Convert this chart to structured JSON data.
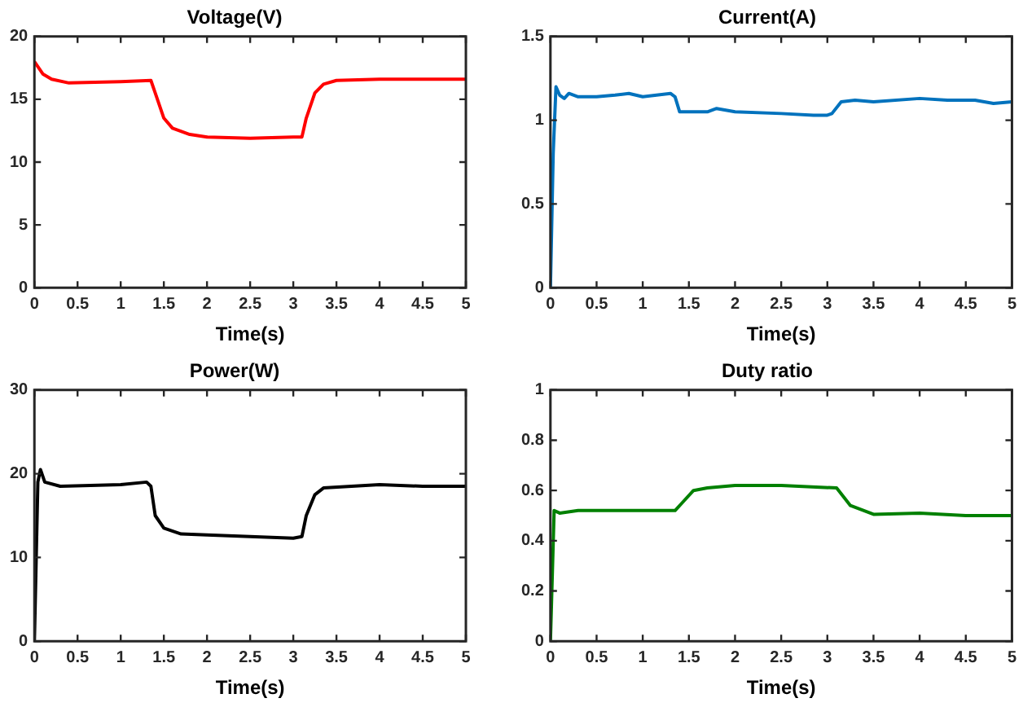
{
  "chart_data": [
    {
      "type": "line",
      "title": "Voltage(V)",
      "xlabel": "Time(s)",
      "xlim": [
        0,
        5
      ],
      "xticks": [
        0,
        0.5,
        1,
        1.5,
        2,
        2.5,
        3,
        3.5,
        4,
        4.5,
        5
      ],
      "ylim": [
        0,
        20
      ],
      "yticks": [
        0,
        5,
        10,
        15,
        20
      ],
      "grid": false,
      "legend": false,
      "marker": "none",
      "line_style": "solid",
      "series": [
        {
          "color": "#ff0000",
          "x": [
            0,
            0.1,
            0.2,
            0.4,
            1,
            1.35,
            1.4,
            1.5,
            1.6,
            1.8,
            2,
            2.5,
            3,
            3.1,
            3.15,
            3.25,
            3.35,
            3.5,
            4,
            5
          ],
          "values": [
            18,
            17,
            16.6,
            16.3,
            16.4,
            16.5,
            15.5,
            13.5,
            12.7,
            12.2,
            12,
            11.9,
            12,
            12,
            13.5,
            15.5,
            16.2,
            16.5,
            16.6,
            16.6
          ]
        }
      ]
    },
    {
      "type": "line",
      "title": "Current(A)",
      "xlabel": "Time(s)",
      "xlim": [
        0,
        5
      ],
      "xticks": [
        0,
        0.5,
        1,
        1.5,
        2,
        2.5,
        3,
        3.5,
        4,
        4.5,
        5
      ],
      "ylim": [
        0,
        1.5
      ],
      "yticks": [
        0,
        0.5,
        1,
        1.5
      ],
      "grid": false,
      "legend": false,
      "marker": "none",
      "line_style": "solid",
      "series": [
        {
          "color": "#0072bd",
          "x": [
            0,
            0.03,
            0.06,
            0.1,
            0.15,
            0.2,
            0.3,
            0.5,
            0.7,
            0.85,
            1,
            1.3,
            1.35,
            1.4,
            1.5,
            1.7,
            1.8,
            2,
            2.5,
            2.85,
            3,
            3.05,
            3.15,
            3.3,
            3.5,
            4,
            4.3,
            4.6,
            4.8,
            5
          ],
          "values": [
            0,
            0.8,
            1.2,
            1.15,
            1.13,
            1.16,
            1.14,
            1.14,
            1.15,
            1.16,
            1.14,
            1.16,
            1.14,
            1.05,
            1.05,
            1.05,
            1.07,
            1.05,
            1.04,
            1.03,
            1.03,
            1.04,
            1.11,
            1.12,
            1.11,
            1.13,
            1.12,
            1.12,
            1.1,
            1.11
          ]
        }
      ]
    },
    {
      "type": "line",
      "title": "Power(W)",
      "xlabel": "Time(s)",
      "xlim": [
        0,
        5
      ],
      "xticks": [
        0,
        0.5,
        1,
        1.5,
        2,
        2.5,
        3,
        3.5,
        4,
        4.5,
        5
      ],
      "ylim": [
        0,
        30
      ],
      "yticks": [
        0,
        10,
        20,
        30
      ],
      "grid": false,
      "legend": false,
      "marker": "none",
      "line_style": "solid",
      "series": [
        {
          "color": "#000000",
          "x": [
            0,
            0.04,
            0.07,
            0.12,
            0.3,
            1,
            1.3,
            1.35,
            1.4,
            1.5,
            1.7,
            2,
            2.5,
            3,
            3.1,
            3.15,
            3.25,
            3.35,
            4,
            4.5,
            5
          ],
          "values": [
            0,
            19,
            20.5,
            19,
            18.5,
            18.7,
            19,
            18.5,
            15,
            13.5,
            12.8,
            12.7,
            12.5,
            12.3,
            12.5,
            15,
            17.5,
            18.3,
            18.7,
            18.5,
            18.5
          ]
        }
      ]
    },
    {
      "type": "line",
      "title": "Duty ratio",
      "xlabel": "Time(s)",
      "xlim": [
        0,
        5
      ],
      "xticks": [
        0,
        0.5,
        1,
        1.5,
        2,
        2.5,
        3,
        3.5,
        4,
        4.5,
        5
      ],
      "ylim": [
        0,
        1
      ],
      "yticks": [
        0,
        0.2,
        0.4,
        0.6,
        0.8,
        1
      ],
      "grid": false,
      "legend": false,
      "marker": "none",
      "line_style": "solid",
      "series": [
        {
          "color": "#008000",
          "x": [
            0,
            0.04,
            0.1,
            0.3,
            1,
            1.35,
            1.45,
            1.55,
            1.7,
            2,
            2.5,
            3.1,
            3.25,
            3.5,
            4,
            4.5,
            5
          ],
          "values": [
            0,
            0.52,
            0.51,
            0.52,
            0.52,
            0.52,
            0.56,
            0.6,
            0.61,
            0.62,
            0.62,
            0.61,
            0.54,
            0.505,
            0.51,
            0.5,
            0.5
          ]
        }
      ]
    }
  ]
}
